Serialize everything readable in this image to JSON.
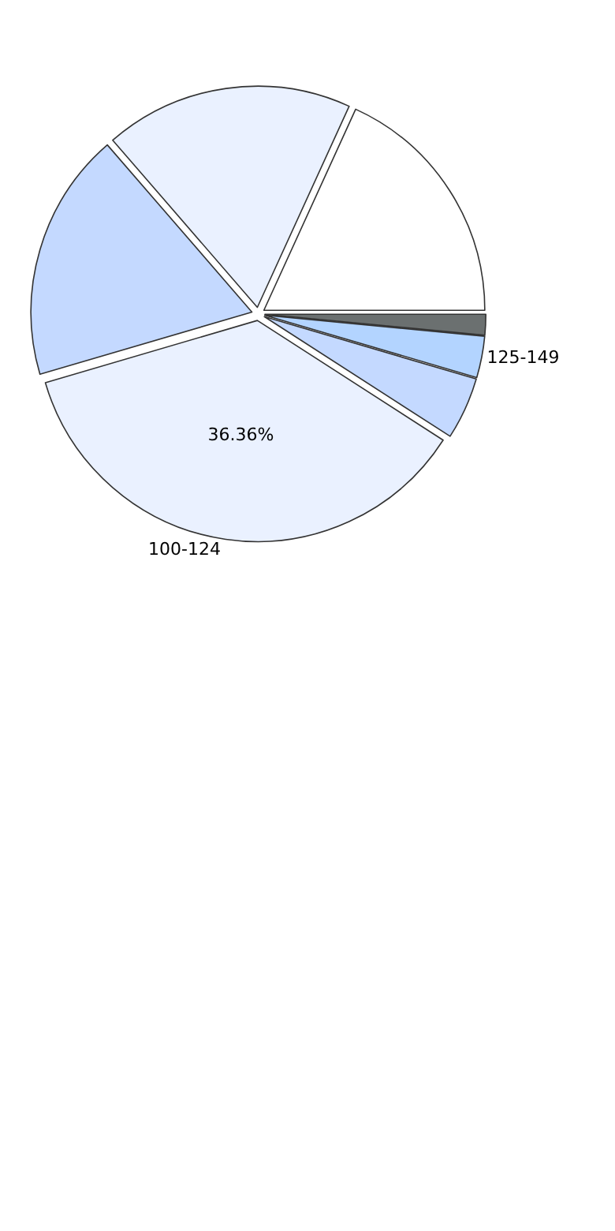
{
  "chart_data": {
    "type": "pie",
    "categories": [
      null,
      null,
      null,
      "100-124",
      null,
      "125-149",
      null
    ],
    "values": [
      18.18,
      18.18,
      18.18,
      36.36,
      4.55,
      3.03,
      1.52
    ],
    "colors": [
      "#ffffff",
      "#eaf1ff",
      "#c4d9ff",
      "#eaf1ff",
      "#c4d9ff",
      "#b3d4ff",
      "#6b7070"
    ],
    "value_labels": [
      null,
      null,
      null,
      "36.36%",
      null,
      null,
      null
    ]
  }
}
